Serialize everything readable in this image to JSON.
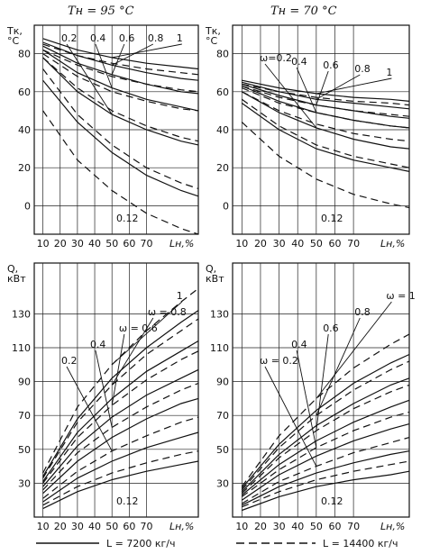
{
  "chart_data": [
    {
      "type": "line",
      "title": "Tн = 95 °C",
      "ylabel": [
        "Tк,",
        "°C"
      ],
      "xlabel": "Lн,%",
      "x_ticks": [
        "10",
        "20",
        "30",
        "40",
        "50",
        "60",
        "70"
      ],
      "y_ticks": [
        "80",
        "60",
        "40",
        "20",
        "0"
      ],
      "xlim": [
        5,
        100
      ],
      "ylim": [
        -15,
        95
      ],
      "omega_labels": [
        "0.2",
        "0.4",
        "0.6",
        "0.8",
        "1"
      ],
      "omega_low": "0.12",
      "series": [
        {
          "omega": 1,
          "style": "solid",
          "x": [
            10,
            30,
            50,
            70,
            90,
            100
          ],
          "y": [
            88,
            82,
            78,
            75,
            73,
            72
          ]
        },
        {
          "omega": 1,
          "style": "dashed",
          "x": [
            10,
            30,
            50,
            70,
            90,
            100
          ],
          "y": [
            85,
            79,
            75,
            72,
            70,
            69
          ]
        },
        {
          "omega": 0.8,
          "style": "solid",
          "x": [
            10,
            30,
            50,
            70,
            90,
            100
          ],
          "y": [
            86,
            79,
            74,
            70,
            67,
            66
          ]
        },
        {
          "omega": 0.8,
          "style": "dashed",
          "x": [
            10,
            30,
            50,
            70,
            90,
            100
          ],
          "y": [
            82,
            74,
            68,
            64,
            61,
            60
          ]
        },
        {
          "omega": 0.6,
          "style": "solid",
          "x": [
            10,
            30,
            50,
            70,
            90,
            100
          ],
          "y": [
            84,
            75,
            69,
            64,
            60,
            59
          ]
        },
        {
          "omega": 0.6,
          "style": "dashed",
          "x": [
            10,
            30,
            50,
            70,
            90,
            100
          ],
          "y": [
            80,
            68,
            60,
            55,
            51,
            50
          ]
        },
        {
          "omega": 0.4,
          "style": "solid",
          "x": [
            10,
            30,
            50,
            70,
            90,
            100
          ],
          "y": [
            82,
            70,
            62,
            56,
            52,
            50
          ]
        },
        {
          "omega": 0.4,
          "style": "dashed",
          "x": [
            10,
            30,
            50,
            70,
            90,
            100
          ],
          "y": [
            78,
            62,
            50,
            42,
            36,
            34
          ]
        },
        {
          "omega": 0.2,
          "style": "solid",
          "x": [
            10,
            30,
            50,
            70,
            90,
            100
          ],
          "y": [
            78,
            60,
            48,
            40,
            34,
            32
          ]
        },
        {
          "omega": 0.2,
          "style": "dashed",
          "x": [
            10,
            30,
            50,
            70,
            90,
            100
          ],
          "y": [
            72,
            48,
            32,
            20,
            12,
            9
          ]
        },
        {
          "omega": 0.12,
          "style": "solid",
          "x": [
            10,
            30,
            50,
            70,
            90,
            100
          ],
          "y": [
            66,
            44,
            28,
            16,
            8,
            5
          ]
        },
        {
          "omega": 0.12,
          "style": "dashed",
          "x": [
            10,
            30,
            50,
            70,
            90,
            100
          ],
          "y": [
            50,
            24,
            8,
            -4,
            -12,
            -15
          ]
        }
      ]
    },
    {
      "type": "line",
      "title": "Tн = 70 °C",
      "ylabel": [
        "Tк,",
        "°C"
      ],
      "xlabel": "Lн,%",
      "x_ticks": [
        "10",
        "20",
        "30",
        "40",
        "50",
        "60",
        "70"
      ],
      "y_ticks": [
        "80",
        "60",
        "40",
        "20",
        "0"
      ],
      "xlim": [
        5,
        100
      ],
      "ylim": [
        -15,
        95
      ],
      "omega_labels": [
        "0.2",
        "0.4",
        "0.6",
        "0.8",
        "1"
      ],
      "omega_prefix": "ω=",
      "omega_low": "0.12",
      "series": [
        {
          "omega": 1,
          "style": "solid",
          "x": [
            10,
            30,
            50,
            70,
            90,
            100
          ],
          "y": [
            66,
            62,
            59,
            57,
            56,
            55
          ]
        },
        {
          "omega": 1,
          "style": "dashed",
          "x": [
            10,
            30,
            50,
            70,
            90,
            100
          ],
          "y": [
            64,
            60,
            57,
            55,
            54,
            53
          ]
        },
        {
          "omega": 0.8,
          "style": "solid",
          "x": [
            10,
            30,
            50,
            70,
            90,
            100
          ],
          "y": [
            65,
            60,
            56,
            54,
            52,
            51
          ]
        },
        {
          "omega": 0.8,
          "style": "dashed",
          "x": [
            10,
            30,
            50,
            70,
            90,
            100
          ],
          "y": [
            63,
            57,
            53,
            50,
            48,
            47
          ]
        },
        {
          "omega": 0.6,
          "style": "solid",
          "x": [
            10,
            30,
            50,
            70,
            90,
            100
          ],
          "y": [
            64,
            58,
            53,
            50,
            47,
            46
          ]
        },
        {
          "omega": 0.6,
          "style": "dashed",
          "x": [
            10,
            30,
            50,
            70,
            90,
            100
          ],
          "y": [
            62,
            54,
            49,
            45,
            42,
            41
          ]
        },
        {
          "omega": 0.4,
          "style": "solid",
          "x": [
            10,
            30,
            50,
            70,
            90,
            100
          ],
          "y": [
            63,
            55,
            49,
            45,
            42,
            41
          ]
        },
        {
          "omega": 0.4,
          "style": "dashed",
          "x": [
            10,
            30,
            50,
            70,
            90,
            100
          ],
          "y": [
            60,
            50,
            43,
            38,
            35,
            34
          ]
        },
        {
          "omega": 0.2,
          "style": "solid",
          "x": [
            10,
            30,
            50,
            70,
            90,
            100
          ],
          "y": [
            60,
            49,
            41,
            35,
            31,
            30
          ]
        },
        {
          "omega": 0.2,
          "style": "dashed",
          "x": [
            10,
            30,
            50,
            70,
            90,
            100
          ],
          "y": [
            56,
            42,
            32,
            26,
            22,
            20
          ]
        },
        {
          "omega": 0.12,
          "style": "solid",
          "x": [
            10,
            30,
            50,
            70,
            90,
            100
          ],
          "y": [
            54,
            40,
            30,
            24,
            20,
            18
          ]
        },
        {
          "omega": 0.12,
          "style": "dashed",
          "x": [
            10,
            30,
            50,
            70,
            90,
            100
          ],
          "y": [
            44,
            26,
            14,
            6,
            1,
            -1
          ]
        }
      ]
    },
    {
      "type": "line",
      "ylabel": [
        "Q,",
        "кВт"
      ],
      "xlabel": "Lн,%",
      "x_ticks": [
        "10",
        "20",
        "30",
        "40",
        "50",
        "60",
        "70"
      ],
      "y_ticks": [
        "130",
        "110",
        "90",
        "70",
        "50",
        "30"
      ],
      "xlim": [
        5,
        100
      ],
      "ylim": [
        10,
        160
      ],
      "omega_labels": [
        "0.2",
        "0.4",
        "ω = 0.6",
        "ω = 0.8",
        "1"
      ],
      "omega_low": "0.12",
      "series": [
        {
          "omega": 1,
          "style": "dashed",
          "x": [
            10,
            30,
            50,
            70,
            90,
            100
          ],
          "y": [
            36,
            75,
            100,
            120,
            137,
            145
          ]
        },
        {
          "omega": 1,
          "style": "solid",
          "x": [
            10,
            30,
            50,
            70,
            90,
            100
          ],
          "y": [
            34,
            68,
            92,
            110,
            125,
            132
          ]
        },
        {
          "omega": 0.8,
          "style": "dashed",
          "x": [
            10,
            30,
            50,
            70,
            90,
            100
          ],
          "y": [
            33,
            66,
            88,
            106,
            120,
            127
          ]
        },
        {
          "omega": 0.8,
          "style": "solid",
          "x": [
            10,
            30,
            50,
            70,
            90,
            100
          ],
          "y": [
            31,
            60,
            80,
            96,
            108,
            114
          ]
        },
        {
          "omega": 0.6,
          "style": "dashed",
          "x": [
            10,
            30,
            50,
            70,
            90,
            100
          ],
          "y": [
            30,
            57,
            76,
            91,
            103,
            108
          ]
        },
        {
          "omega": 0.6,
          "style": "solid",
          "x": [
            10,
            30,
            50,
            70,
            90,
            100
          ],
          "y": [
            28,
            52,
            69,
            82,
            92,
            97
          ]
        },
        {
          "omega": 0.4,
          "style": "dashed",
          "x": [
            10,
            30,
            50,
            70,
            90,
            100
          ],
          "y": [
            26,
            48,
            63,
            75,
            85,
            89
          ]
        },
        {
          "omega": 0.4,
          "style": "solid",
          "x": [
            10,
            30,
            50,
            70,
            90,
            100
          ],
          "y": [
            24,
            43,
            57,
            68,
            77,
            80
          ]
        },
        {
          "omega": 0.2,
          "style": "dashed",
          "x": [
            10,
            30,
            50,
            70,
            90,
            100
          ],
          "y": [
            21,
            37,
            49,
            58,
            66,
            69
          ]
        },
        {
          "omega": 0.2,
          "style": "solid",
          "x": [
            10,
            30,
            50,
            70,
            90,
            100
          ],
          "y": [
            19,
            33,
            43,
            51,
            57,
            60
          ]
        },
        {
          "omega": 0.12,
          "style": "dashed",
          "x": [
            10,
            30,
            50,
            70,
            90,
            100
          ],
          "y": [
            17,
            28,
            36,
            42,
            47,
            49
          ]
        },
        {
          "omega": 0.12,
          "style": "solid",
          "x": [
            10,
            30,
            50,
            70,
            90,
            100
          ],
          "y": [
            15,
            25,
            32,
            37,
            41,
            43
          ]
        }
      ]
    },
    {
      "type": "line",
      "ylabel": [
        "Q,",
        "кВт"
      ],
      "xlabel": "Lн,%",
      "x_ticks": [
        "10",
        "20",
        "30",
        "40",
        "50",
        "60",
        "70"
      ],
      "y_ticks": [
        "130",
        "110",
        "90",
        "70",
        "50",
        "30"
      ],
      "xlim": [
        5,
        100
      ],
      "ylim": [
        10,
        160
      ],
      "omega_labels": [
        "ω = 0.2",
        "0.4",
        "0.6",
        "0.8",
        "ω = 1"
      ],
      "omega_low": "0.12",
      "series": [
        {
          "omega": 1,
          "style": "dashed",
          "x": [
            10,
            30,
            50,
            70,
            90,
            100
          ],
          "y": [
            28,
            58,
            80,
            98,
            112,
            118
          ]
        },
        {
          "omega": 1,
          "style": "solid",
          "x": [
            10,
            30,
            50,
            70,
            90,
            100
          ],
          "y": [
            27,
            53,
            73,
            89,
            101,
            106
          ]
        },
        {
          "omega": 0.8,
          "style": "dashed",
          "x": [
            10,
            30,
            50,
            70,
            90,
            100
          ],
          "y": [
            26,
            51,
            70,
            85,
            97,
            102
          ]
        },
        {
          "omega": 0.8,
          "style": "solid",
          "x": [
            10,
            30,
            50,
            70,
            90,
            100
          ],
          "y": [
            25,
            47,
            64,
            77,
            88,
            92
          ]
        },
        {
          "omega": 0.6,
          "style": "dashed",
          "x": [
            10,
            30,
            50,
            70,
            90,
            100
          ],
          "y": [
            24,
            45,
            61,
            74,
            84,
            88
          ]
        },
        {
          "omega": 0.6,
          "style": "solid",
          "x": [
            10,
            30,
            50,
            70,
            90,
            100
          ],
          "y": [
            23,
            41,
            55,
            66,
            75,
            79
          ]
        },
        {
          "omega": 0.4,
          "style": "dashed",
          "x": [
            10,
            30,
            50,
            70,
            90,
            100
          ],
          "y": [
            22,
            38,
            51,
            61,
            69,
            72
          ]
        },
        {
          "omega": 0.4,
          "style": "solid",
          "x": [
            10,
            30,
            50,
            70,
            90,
            100
          ],
          "y": [
            20,
            35,
            46,
            55,
            62,
            65
          ]
        },
        {
          "omega": 0.2,
          "style": "dashed",
          "x": [
            10,
            30,
            50,
            70,
            90,
            100
          ],
          "y": [
            18,
            31,
            40,
            48,
            54,
            57
          ]
        },
        {
          "omega": 0.2,
          "style": "solid",
          "x": [
            10,
            30,
            50,
            70,
            90,
            100
          ],
          "y": [
            17,
            28,
            36,
            42,
            47,
            49
          ]
        },
        {
          "omega": 0.12,
          "style": "dashed",
          "x": [
            10,
            30,
            50,
            70,
            90,
            100
          ],
          "y": [
            16,
            25,
            32,
            37,
            41,
            43
          ]
        },
        {
          "omega": 0.12,
          "style": "solid",
          "x": [
            10,
            30,
            50,
            70,
            90,
            100
          ],
          "y": [
            14,
            22,
            28,
            32,
            35,
            37
          ]
        }
      ]
    }
  ],
  "legend": {
    "solid_label": "L = 7200 кг/ч",
    "dashed_label": "L = 14400 кг/ч"
  }
}
